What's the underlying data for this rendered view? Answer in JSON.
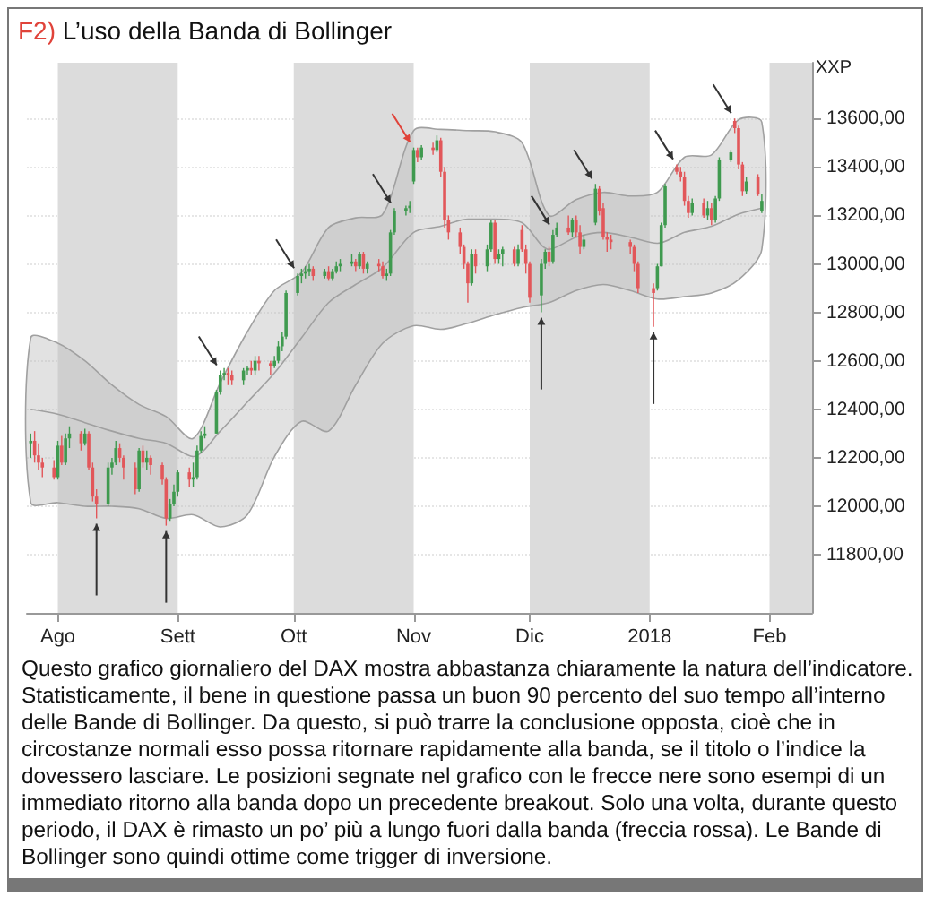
{
  "chart_data": {
    "type": "candlestick",
    "title": "F2) L’uso della Banda di Bollinger",
    "ylabel": "XXP",
    "annotations": [
      "Questo grafico giornaliero del DAX mostra abbastanza chiaramente la natura dell’indicatore. Statisticamente, il bene in questione passa un buon 90 percento del suo tempo all’interno delle Bande di Bollinger. Da questo, si può trarre la conclusione opposta, cioè che in circostanze normali esso possa ritornare rapidamente alla banda, se il titolo o l’indice la dovessero lasciare. Le posizioni segnate nel grafico con le frecce nere sono esempi di un immediato ritorno alla banda dopo un precedente breakout. Solo una volta, durante questo periodo, il DAX è rimasto un po’ più a lungo fuori dalla banda (freccia rossa). Le Bande di Bollinger sono quindi ottime come trigger di inversione."
    ],
    "xlim": [
      "2017-07-24",
      "2018-02-12"
    ],
    "xticks": [
      {
        "value": "2017-08-01",
        "label": "Ago"
      },
      {
        "value": "2017-09-01",
        "label": "Sett"
      },
      {
        "value": "2017-10-01",
        "label": "Ott"
      },
      {
        "value": "2017-11-01",
        "label": "Nov"
      },
      {
        "value": "2017-12-01",
        "label": "Dic"
      },
      {
        "value": "2018-01-01",
        "label": "2018"
      },
      {
        "value": "2018-02-01",
        "label": "Feb"
      }
    ],
    "ylim": [
      11560,
      13830
    ],
    "yticks": [
      {
        "value": 11800,
        "label": "11800,00"
      },
      {
        "value": 12000,
        "label": "12000,00"
      },
      {
        "value": 12200,
        "label": "12200,00"
      },
      {
        "value": 12400,
        "label": "12400,00"
      },
      {
        "value": 12600,
        "label": "12600,00"
      },
      {
        "value": 12800,
        "label": "12800,00"
      },
      {
        "value": 13000,
        "label": "13000,00"
      },
      {
        "value": 13200,
        "label": "13200,00"
      },
      {
        "value": 13400,
        "label": "13400,00"
      },
      {
        "value": 13600,
        "label": "13600,00"
      }
    ],
    "grid": "y",
    "bands": [
      {
        "axis": "x",
        "from": "2017-08-01",
        "to": "2017-09-01",
        "color": "#dcdcdc"
      },
      {
        "axis": "x",
        "from": "2017-10-01",
        "to": "2017-11-01",
        "color": "#dcdcdc"
      },
      {
        "axis": "x",
        "from": "2017-12-01",
        "to": "2018-01-01",
        "color": "#dcdcdc"
      },
      {
        "axis": "x",
        "from": "2018-02-01",
        "to": "2018-02-12",
        "color": "#dcdcdc"
      }
    ],
    "series": [
      {
        "x": [
          "2017-07-25",
          "2017-07-26",
          "2017-07-27",
          "2017-07-28",
          "2017-07-31",
          "2017-08-01",
          "2017-08-02",
          "2017-08-03",
          "2017-08-04",
          "2017-08-07",
          "2017-08-08",
          "2017-08-09",
          "2017-08-10",
          "2017-08-11",
          "2017-08-14",
          "2017-08-15",
          "2017-08-16",
          "2017-08-17",
          "2017-08-18",
          "2017-08-21",
          "2017-08-22",
          "2017-08-23",
          "2017-08-24",
          "2017-08-25",
          "2017-08-28",
          "2017-08-29",
          "2017-08-30",
          "2017-08-31",
          "2017-09-01",
          "2017-09-04",
          "2017-09-05",
          "2017-09-06",
          "2017-09-07",
          "2017-09-08",
          "2017-09-11",
          "2017-09-12",
          "2017-09-13",
          "2017-09-14",
          "2017-09-15",
          "2017-09-18",
          "2017-09-19",
          "2017-09-20",
          "2017-09-21",
          "2017-09-22",
          "2017-09-25",
          "2017-09-26",
          "2017-09-27",
          "2017-09-28",
          "2017-09-29",
          "2017-10-02",
          "2017-10-03",
          "2017-10-04",
          "2017-10-05",
          "2017-10-06",
          "2017-10-09",
          "2017-10-10",
          "2017-10-11",
          "2017-10-12",
          "2017-10-13",
          "2017-10-16",
          "2017-10-17",
          "2017-10-18",
          "2017-10-19",
          "2017-10-20",
          "2017-10-23",
          "2017-10-24",
          "2017-10-25",
          "2017-10-26",
          "2017-10-27",
          "2017-10-30",
          "2017-10-31",
          "2017-11-01",
          "2017-11-02",
          "2017-11-03",
          "2017-11-06",
          "2017-11-07",
          "2017-11-08",
          "2017-11-09",
          "2017-11-10",
          "2017-11-13",
          "2017-11-14",
          "2017-11-15",
          "2017-11-16",
          "2017-11-17",
          "2017-11-20",
          "2017-11-21",
          "2017-11-22",
          "2017-11-23",
          "2017-11-24",
          "2017-11-27",
          "2017-11-28",
          "2017-11-29",
          "2017-11-30",
          "2017-12-01",
          "2017-12-04",
          "2017-12-05",
          "2017-12-06",
          "2017-12-07",
          "2017-12-08",
          "2017-12-11",
          "2017-12-12",
          "2017-12-13",
          "2017-12-14",
          "2017-12-15",
          "2017-12-18",
          "2017-12-19",
          "2017-12-20",
          "2017-12-21",
          "2017-12-22",
          "2017-12-27",
          "2017-12-28",
          "2017-12-29",
          "2018-01-02",
          "2018-01-03",
          "2018-01-04",
          "2018-01-05",
          "2018-01-08",
          "2018-01-09",
          "2018-01-10",
          "2018-01-11",
          "2018-01-12",
          "2018-01-15",
          "2018-01-16",
          "2018-01-17",
          "2018-01-18",
          "2018-01-19",
          "2018-01-22",
          "2018-01-23",
          "2018-01-24",
          "2018-01-25",
          "2018-01-26",
          "2018-01-29",
          "2018-01-30"
        ],
        "ohlc": [
          [
            12260,
            12300,
            12200,
            12270
          ],
          [
            12270,
            12310,
            12180,
            12210
          ],
          [
            12210,
            12260,
            12150,
            12180
          ],
          [
            12180,
            12200,
            12120,
            12160
          ],
          [
            12160,
            12190,
            12110,
            12120
          ],
          [
            12120,
            12270,
            12110,
            12250
          ],
          [
            12250,
            12290,
            12170,
            12180
          ],
          [
            12180,
            12300,
            12170,
            12280
          ],
          [
            12280,
            12330,
            12240,
            12300
          ],
          [
            12300,
            12310,
            12230,
            12260
          ],
          [
            12260,
            12320,
            12250,
            12300
          ],
          [
            12300,
            12310,
            12150,
            12160
          ],
          [
            12160,
            12180,
            12020,
            12040
          ],
          [
            12040,
            12070,
            11950,
            12010
          ],
          [
            12010,
            12180,
            12000,
            12160
          ],
          [
            12160,
            12200,
            12130,
            12180
          ],
          [
            12180,
            12270,
            12170,
            12240
          ],
          [
            12240,
            12260,
            12180,
            12200
          ],
          [
            12200,
            12210,
            12110,
            12160
          ],
          [
            12160,
            12180,
            12050,
            12070
          ],
          [
            12070,
            12240,
            12060,
            12230
          ],
          [
            12230,
            12250,
            12160,
            12180
          ],
          [
            12180,
            12230,
            12150,
            12200
          ],
          [
            12200,
            12210,
            12130,
            12170
          ],
          [
            12170,
            12180,
            12090,
            12110
          ],
          [
            12110,
            12120,
            11920,
            11950
          ],
          [
            11950,
            12030,
            11940,
            12010
          ],
          [
            12010,
            12090,
            12000,
            12060
          ],
          [
            12060,
            12150,
            12040,
            12140
          ],
          [
            12140,
            12160,
            12080,
            12110
          ],
          [
            12110,
            12180,
            12080,
            12120
          ],
          [
            12120,
            12250,
            12110,
            12230
          ],
          [
            12230,
            12310,
            12220,
            12290
          ],
          [
            12290,
            12330,
            12280,
            12300
          ],
          [
            12300,
            12480,
            12300,
            12470
          ],
          [
            12470,
            12560,
            12460,
            12540
          ],
          [
            12540,
            12570,
            12520,
            12550
          ],
          [
            12550,
            12570,
            12500,
            12540
          ],
          [
            12540,
            12560,
            12500,
            12520
          ],
          [
            12520,
            12570,
            12500,
            12560
          ],
          [
            12560,
            12580,
            12540,
            12570
          ],
          [
            12570,
            12600,
            12540,
            12560
          ],
          [
            12560,
            12620,
            12540,
            12600
          ],
          [
            12600,
            12620,
            12560,
            12590
          ],
          [
            12590,
            12600,
            12540,
            12580
          ],
          [
            12580,
            12620,
            12570,
            12600
          ],
          [
            12600,
            12680,
            12590,
            12660
          ],
          [
            12660,
            12720,
            12640,
            12700
          ],
          [
            12700,
            12890,
            12690,
            12880
          ],
          [
            12880,
            12960,
            12870,
            12950
          ],
          [
            12950,
            12980,
            12920,
            12960
          ],
          [
            12960,
            12990,
            12940,
            12970
          ],
          [
            12970,
            13000,
            12950,
            12980
          ],
          [
            12980,
            12990,
            12930,
            12950
          ],
          [
            12950,
            12980,
            12940,
            12970
          ],
          [
            12970,
            12990,
            12930,
            12940
          ],
          [
            12940,
            12980,
            12930,
            12970
          ],
          [
            12970,
            13010,
            12960,
            12990
          ],
          [
            12990,
            13020,
            12970,
            13000
          ],
          [
            13000,
            13040,
            12990,
            13010
          ],
          [
            13010,
            13020,
            12970,
            12990
          ],
          [
            12990,
            13050,
            12980,
            13040
          ],
          [
            13040,
            13050,
            12960,
            12980
          ],
          [
            12980,
            13010,
            12960,
            13000
          ],
          [
            13000,
            13020,
            12970,
            12990
          ],
          [
            12990,
            13010,
            12940,
            12950
          ],
          [
            12950,
            12980,
            12930,
            12960
          ],
          [
            12960,
            13140,
            12950,
            13130
          ],
          [
            13130,
            13230,
            13120,
            13220
          ],
          [
            13220,
            13240,
            13200,
            13230
          ],
          [
            13230,
            13260,
            13210,
            13240
          ],
          [
            13340,
            13480,
            13330,
            13470
          ],
          [
            13470,
            13480,
            13420,
            13440
          ],
          [
            13440,
            13490,
            13430,
            13480
          ],
          [
            13480,
            13500,
            13450,
            13470
          ],
          [
            13470,
            13530,
            13460,
            13510
          ],
          [
            13510,
            13520,
            13360,
            13380
          ],
          [
            13380,
            13400,
            13150,
            13180
          ],
          [
            13180,
            13200,
            13100,
            13130
          ],
          [
            13130,
            13150,
            13040,
            13070
          ],
          [
            13070,
            13080,
            12980,
            13000
          ],
          [
            13000,
            13010,
            12840,
            12920
          ],
          [
            12920,
            13060,
            12910,
            13040
          ],
          [
            13040,
            13060,
            12960,
            12990
          ],
          [
            12990,
            13080,
            12970,
            13060
          ],
          [
            13060,
            13180,
            13050,
            13170
          ],
          [
            13170,
            13180,
            13000,
            13020
          ],
          [
            13020,
            13060,
            13000,
            13040
          ],
          [
            13040,
            13070,
            12990,
            13060
          ],
          [
            13060,
            13070,
            12990,
            13000
          ],
          [
            13000,
            13080,
            12990,
            13060
          ],
          [
            13140,
            13160,
            13050,
            13060
          ],
          [
            13060,
            13080,
            12960,
            13000
          ],
          [
            13000,
            13010,
            12840,
            12860
          ],
          [
            12870,
            13020,
            12800,
            13000
          ],
          [
            13000,
            13060,
            12980,
            13050
          ],
          [
            13050,
            13070,
            12990,
            13010
          ],
          [
            13010,
            13140,
            13000,
            13120
          ],
          [
            13120,
            13170,
            13110,
            13150
          ],
          [
            13150,
            13200,
            13120,
            13130
          ],
          [
            13130,
            13190,
            13110,
            13180
          ],
          [
            13180,
            13200,
            13110,
            13130
          ],
          [
            13130,
            13160,
            13040,
            13070
          ],
          [
            13070,
            13120,
            13060,
            13100
          ],
          [
            13170,
            13330,
            13160,
            13310
          ],
          [
            13310,
            13320,
            13200,
            13220
          ],
          [
            13230,
            13250,
            13100,
            13110
          ],
          [
            13110,
            13130,
            13050,
            13100
          ],
          [
            13100,
            13120,
            13060,
            13090
          ],
          [
            13090,
            13100,
            13040,
            13070
          ],
          [
            13070,
            13080,
            12970,
            13000
          ],
          [
            13000,
            13010,
            12880,
            12900
          ],
          [
            12900,
            12920,
            12740,
            12880
          ],
          [
            12900,
            13000,
            12890,
            12990
          ],
          [
            12990,
            13170,
            12990,
            13160
          ],
          [
            13160,
            13330,
            13150,
            13320
          ],
          [
            13400,
            13410,
            13370,
            13380
          ],
          [
            13380,
            13400,
            13340,
            13360
          ],
          [
            13360,
            13380,
            13240,
            13260
          ],
          [
            13260,
            13280,
            13190,
            13210
          ],
          [
            13210,
            13270,
            13200,
            13250
          ],
          [
            13250,
            13270,
            13190,
            13200
          ],
          [
            13200,
            13260,
            13180,
            13230
          ],
          [
            13230,
            13250,
            13160,
            13180
          ],
          [
            13180,
            13280,
            13170,
            13270
          ],
          [
            13270,
            13440,
            13260,
            13430
          ],
          [
            13430,
            13470,
            13420,
            13460
          ],
          [
            13590,
            13600,
            13540,
            13560
          ],
          [
            13560,
            13570,
            13390,
            13410
          ],
          [
            13410,
            13420,
            13280,
            13300
          ],
          [
            13300,
            13360,
            13290,
            13340
          ],
          [
            13360,
            13370,
            13280,
            13290
          ],
          [
            13220,
            13290,
            13210,
            13260
          ]
        ]
      },
      {
        "type": "line",
        "color": "#a0a0a0",
        "x": [
          "2017-07-25",
          "2017-08-01",
          "2017-08-08",
          "2017-08-15",
          "2017-08-22",
          "2017-08-29",
          "2017-09-05",
          "2017-09-12",
          "2017-09-19",
          "2017-09-26",
          "2017-10-03",
          "2017-10-10",
          "2017-10-17",
          "2017-10-24",
          "2017-11-01",
          "2017-11-08",
          "2017-11-15",
          "2017-11-22",
          "2017-11-29",
          "2017-12-06",
          "2017-12-13",
          "2017-12-20",
          "2017-12-27",
          "2018-01-03",
          "2018-01-10",
          "2018-01-17",
          "2018-01-24",
          "2018-01-30"
        ],
        "values": [
          12400,
          12380,
          12345,
          12310,
          12280,
          12260,
          12205,
          12310,
          12430,
          12550,
          12695,
          12840,
          12915,
          12985,
          13130,
          13155,
          13185,
          13185,
          13170,
          13060,
          13110,
          13130,
          13110,
          13085,
          13130,
          13155,
          13205,
          13230
        ],
        "upper": [
          12695,
          12673,
          12600,
          12500,
          12420,
          12370,
          12280,
          12510,
          12720,
          12890,
          12965,
          13150,
          13190,
          13205,
          13550,
          13555,
          13550,
          13545,
          13500,
          13200,
          13265,
          13295,
          13280,
          13295,
          13440,
          13450,
          13595,
          13585
        ],
        "lower": [
          12015,
          12015,
          12000,
          12000,
          11990,
          11950,
          11965,
          11915,
          11965,
          12205,
          12350,
          12310,
          12500,
          12673,
          12745,
          12730,
          12755,
          12790,
          12820,
          12840,
          12890,
          12915,
          12890,
          12855,
          12865,
          12880,
          12935,
          13060
        ]
      }
    ]
  }
}
